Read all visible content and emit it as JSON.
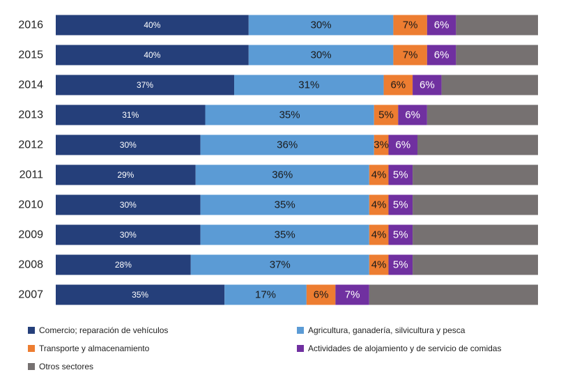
{
  "chart_data": {
    "type": "bar",
    "orientation": "horizontal",
    "stacked": true,
    "percent_scale": true,
    "categories": [
      "2016",
      "2015",
      "2014",
      "2013",
      "2012",
      "2011",
      "2010",
      "2009",
      "2008",
      "2007"
    ],
    "series": [
      {
        "name": "Comercio; reparación de vehículos",
        "color": "#253F7A",
        "values": [
          40,
          40,
          37,
          31,
          30,
          29,
          30,
          30,
          28,
          35
        ],
        "labels": [
          "40%",
          "40%",
          "37%",
          "31%",
          "30%",
          "29%",
          "30%",
          "30%",
          "28%",
          "35%"
        ]
      },
      {
        "name": "Agricultura, ganadería, silvicultura y pesca",
        "color": "#5B9BD5",
        "values": [
          30,
          30,
          31,
          35,
          36,
          36,
          35,
          35,
          37,
          17
        ],
        "labels": [
          "30%",
          "30%",
          "31%",
          "35%",
          "36%",
          "36%",
          "35%",
          "35%",
          "37%",
          "17%"
        ]
      },
      {
        "name": "Transporte y almacenamiento",
        "color": "#ED7D31",
        "values": [
          7,
          7,
          6,
          5,
          3,
          4,
          4,
          4,
          4,
          6
        ],
        "labels": [
          "7%",
          "7%",
          "6%",
          "5%",
          "3%",
          "4%",
          "4%",
          "4%",
          "4%",
          "6%"
        ]
      },
      {
        "name": "Actividades de alojamiento y de servicio de comidas",
        "color": "#7030A0",
        "values": [
          6,
          6,
          6,
          6,
          6,
          5,
          5,
          5,
          5,
          7
        ],
        "labels": [
          "6%",
          "6%",
          "6%",
          "6%",
          "6%",
          "5%",
          "5%",
          "5%",
          "5%",
          "7%"
        ]
      },
      {
        "name": "Otros sectores",
        "color": "#767171",
        "values": [
          17,
          17,
          20,
          23,
          25,
          26,
          26,
          26,
          26,
          35
        ],
        "labels": [
          "",
          "",
          "",
          "",
          "",
          "",
          "",
          "",
          "",
          ""
        ]
      }
    ],
    "legend_position": "bottom",
    "grid": false
  }
}
